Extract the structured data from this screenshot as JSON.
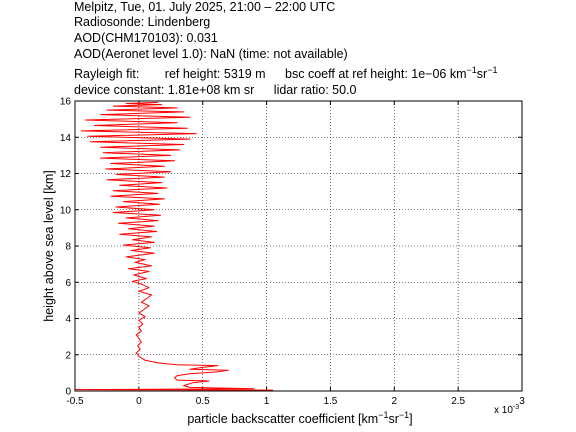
{
  "header": {
    "line1": "Melpitz, Tue, 01. July 2025, 21:00 – 22:00 UTC",
    "line2": "Radiosonde: Lindenberg",
    "line3": "AOD(CHM170103): 0.031",
    "line4": "AOD(Aeronet level 1.0): NaN   (time: not available)",
    "rayleigh_label": "Rayleigh fit:",
    "ref_height": "ref height: 5319 m",
    "bsc_coeff_prefix": "bsc coeff at ref height: 1e−06 km",
    "bsc_coeff_unit_sr": "sr",
    "device_constant": "device constant: 1.81e+08 km sr",
    "lidar_ratio": "lidar ratio: 50.0"
  },
  "chart_data": {
    "type": "line",
    "xlabel": "particle backscatter coefficient [km⁻¹sr⁻¹]",
    "xlabel_main": "particle backscatter coefficient [km",
    "xlabel_sr": "sr",
    "xlabel_end": "]",
    "xscale_label": "x 10",
    "xscale_exp": "-3",
    "ylabel": "height above sea level [km]",
    "xlim": [
      -0.5,
      3.0
    ],
    "ylim": [
      0,
      16
    ],
    "xticks": [
      -0.5,
      0,
      0.5,
      1,
      1.5,
      2,
      2.5,
      3
    ],
    "xtick_labels": [
      "-0.5",
      "0",
      "0.5",
      "1",
      "1.5",
      "2",
      "2.5",
      "3"
    ],
    "yticks": [
      0,
      2,
      4,
      6,
      8,
      10,
      12,
      14,
      16
    ],
    "ytick_labels": [
      "0",
      "2",
      "4",
      "6",
      "8",
      "10",
      "12",
      "14",
      "16"
    ],
    "grid": true,
    "line_color": "#ff0000",
    "series": [
      {
        "points": [
          [
            1.05,
            0.05
          ],
          [
            -0.5,
            0.08
          ],
          [
            0.9,
            0.12
          ],
          [
            0.4,
            0.2
          ],
          [
            0.35,
            0.3
          ],
          [
            0.42,
            0.45
          ],
          [
            0.55,
            0.55
          ],
          [
            0.3,
            0.6
          ],
          [
            0.28,
            0.72
          ],
          [
            0.3,
            0.85
          ],
          [
            0.4,
            0.95
          ],
          [
            0.6,
            1.05
          ],
          [
            0.7,
            1.15
          ],
          [
            0.4,
            1.2
          ],
          [
            0.5,
            1.3
          ],
          [
            0.62,
            1.4
          ],
          [
            0.3,
            1.45
          ],
          [
            0.15,
            1.55
          ],
          [
            0.05,
            1.7
          ],
          [
            0.0,
            1.9
          ],
          [
            -0.02,
            2.1
          ],
          [
            0.01,
            2.3
          ],
          [
            -0.01,
            2.5
          ],
          [
            0.02,
            2.7
          ],
          [
            0.0,
            2.9
          ],
          [
            -0.02,
            3.1
          ],
          [
            0.02,
            3.3
          ],
          [
            0.0,
            3.5
          ],
          [
            0.03,
            3.7
          ],
          [
            0.0,
            3.9
          ],
          [
            0.05,
            4.1
          ],
          [
            0.0,
            4.3
          ],
          [
            0.04,
            4.5
          ],
          [
            0.08,
            4.7
          ],
          [
            0.02,
            4.9
          ],
          [
            0.06,
            5.1
          ],
          [
            0.1,
            5.3
          ],
          [
            0.0,
            5.5
          ],
          [
            0.08,
            5.7
          ],
          [
            0.02,
            5.9
          ],
          [
            -0.05,
            6.05
          ],
          [
            0.06,
            6.2
          ],
          [
            -0.04,
            6.4
          ],
          [
            0.08,
            6.6
          ],
          [
            -0.08,
            6.75
          ],
          [
            0.1,
            6.9
          ],
          [
            -0.03,
            7.1
          ],
          [
            0.05,
            7.25
          ],
          [
            -0.1,
            7.4
          ],
          [
            0.12,
            7.6
          ],
          [
            -0.06,
            7.75
          ],
          [
            0.09,
            7.9
          ],
          [
            -0.12,
            8.05
          ],
          [
            0.12,
            8.2
          ],
          [
            -0.05,
            8.35
          ],
          [
            0.1,
            8.5
          ],
          [
            -0.15,
            8.65
          ],
          [
            0.14,
            8.8
          ],
          [
            -0.08,
            8.95
          ],
          [
            0.12,
            9.1
          ],
          [
            -0.16,
            9.25
          ],
          [
            0.15,
            9.4
          ],
          [
            -0.1,
            9.55
          ],
          [
            0.17,
            9.7
          ],
          [
            -0.2,
            9.85
          ],
          [
            0.12,
            10.0
          ],
          [
            -0.18,
            10.15
          ],
          [
            0.16,
            10.3
          ],
          [
            -0.12,
            10.45
          ],
          [
            0.2,
            10.6
          ],
          [
            -0.22,
            10.75
          ],
          [
            0.15,
            10.9
          ],
          [
            -0.2,
            11.05
          ],
          [
            0.22,
            11.2
          ],
          [
            -0.15,
            11.35
          ],
          [
            0.18,
            11.5
          ],
          [
            -0.25,
            11.65
          ],
          [
            0.2,
            11.8
          ],
          [
            -0.18,
            11.95
          ],
          [
            0.25,
            12.1
          ],
          [
            -0.26,
            12.25
          ],
          [
            0.2,
            12.4
          ],
          [
            -0.22,
            12.55
          ],
          [
            0.28,
            12.7
          ],
          [
            -0.3,
            12.85
          ],
          [
            0.25,
            13.0
          ],
          [
            -0.28,
            13.15
          ],
          [
            0.32,
            13.3
          ],
          [
            -0.3,
            13.45
          ],
          [
            0.35,
            13.6
          ],
          [
            -0.38,
            13.75
          ],
          [
            0.4,
            13.9
          ],
          [
            -0.4,
            14.05
          ],
          [
            0.45,
            14.2
          ],
          [
            -0.45,
            14.35
          ],
          [
            0.38,
            14.5
          ],
          [
            -0.35,
            14.65
          ],
          [
            0.3,
            14.8
          ],
          [
            -0.42,
            14.95
          ],
          [
            0.4,
            15.1
          ],
          [
            -0.3,
            15.25
          ],
          [
            0.35,
            15.4
          ],
          [
            -0.25,
            15.5
          ],
          [
            0.3,
            15.62
          ],
          [
            -0.2,
            15.72
          ],
          [
            0.18,
            15.8
          ],
          [
            -0.1,
            15.86
          ],
          [
            0.15,
            15.92
          ]
        ]
      }
    ]
  }
}
